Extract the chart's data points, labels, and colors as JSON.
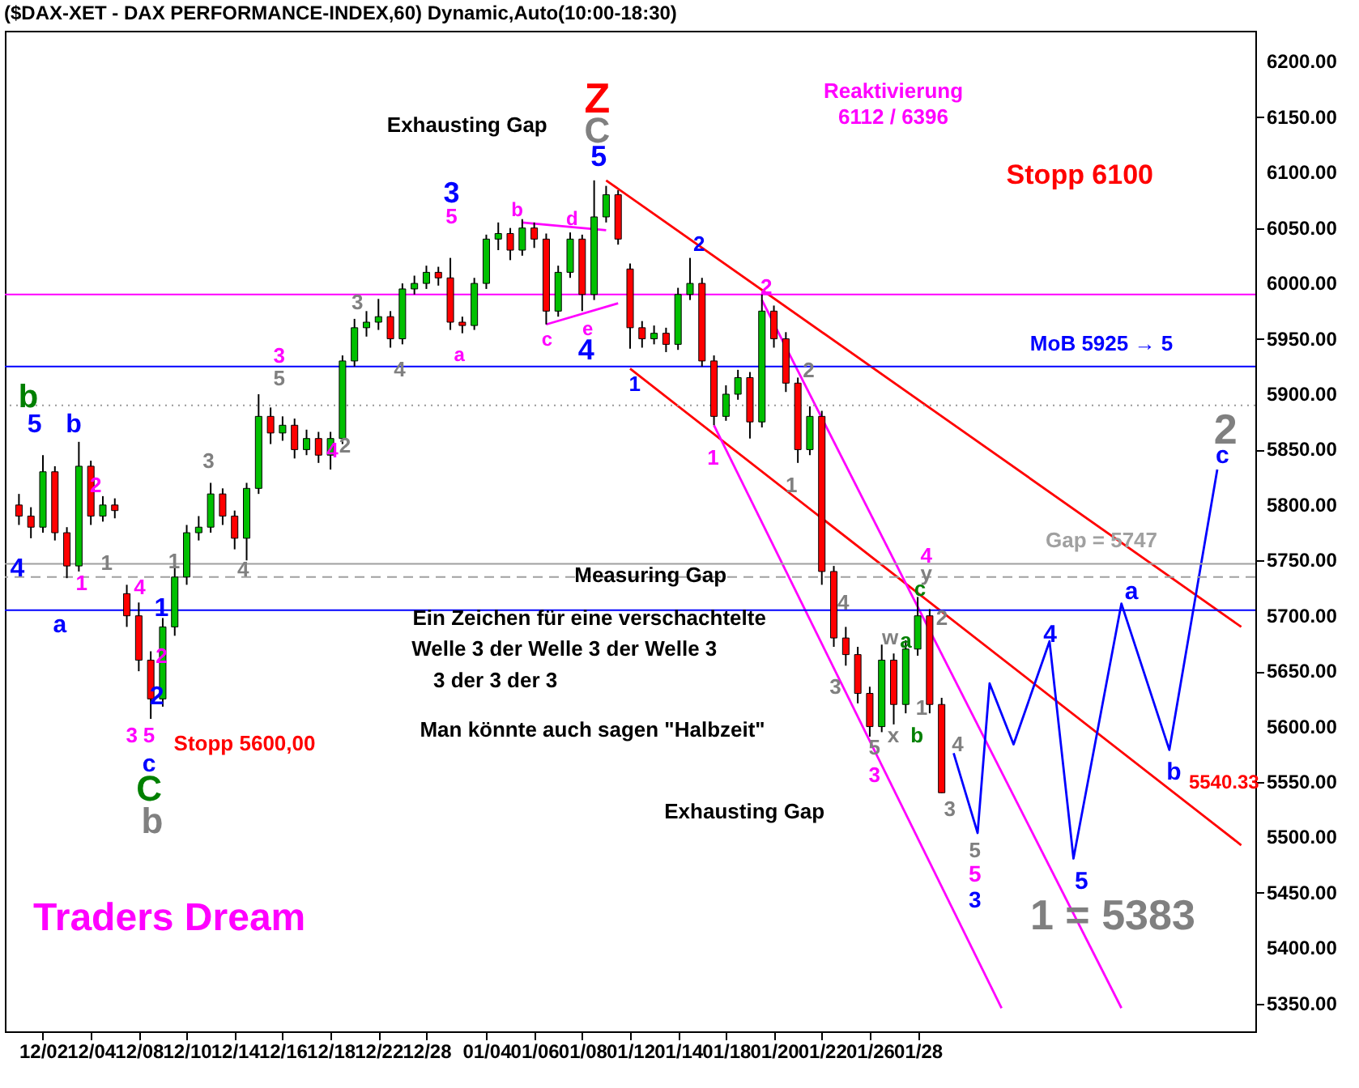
{
  "chart_data": {
    "type": "candlestick",
    "title": "($DAX-XET - DAX PERFORMANCE-INDEX,60) Dynamic,Auto(10:00-18:30)",
    "categories": [
      null,
      null,
      "12/02",
      null,
      null,
      null,
      "12/04",
      null,
      null,
      null,
      "12/08",
      null,
      null,
      null,
      "12/10",
      null,
      null,
      null,
      "12/14",
      null,
      null,
      null,
      "12/16",
      null,
      null,
      null,
      "12/18",
      null,
      null,
      null,
      "12/22",
      null,
      null,
      null,
      "12/28",
      null,
      null,
      null,
      null,
      "01/04",
      null,
      null,
      null,
      "01/06",
      null,
      null,
      null,
      "01/08",
      null,
      null,
      null,
      "01/12",
      null,
      null,
      null,
      "01/14",
      null,
      null,
      null,
      "01/18",
      null,
      null,
      null,
      "01/20",
      null,
      null,
      null,
      "01/22",
      null,
      null,
      null,
      "01/26",
      null,
      null,
      null,
      "01/28",
      null,
      null,
      null,
      null,
      null,
      null,
      null,
      null,
      null,
      null,
      null,
      null,
      null,
      null,
      null,
      null,
      null,
      null,
      null,
      null,
      null,
      null,
      null,
      null,
      null,
      null,
      null
    ],
    "ohlc": [
      [
        5800,
        5810,
        5782,
        5790
      ],
      [
        5790,
        5798,
        5770,
        5780
      ],
      [
        5780,
        5845,
        5775,
        5830
      ],
      [
        5830,
        5835,
        5768,
        5775
      ],
      [
        5775,
        5780,
        5734,
        5745
      ],
      [
        5745,
        5857,
        5740,
        5835
      ],
      [
        5835,
        5840,
        5782,
        5790
      ],
      [
        5790,
        5808,
        5785,
        5800
      ],
      [
        5800,
        5806,
        5788,
        5795
      ],
      [
        5720,
        5728,
        5690,
        5700
      ],
      [
        5700,
        5712,
        5650,
        5660
      ],
      [
        5660,
        5668,
        5607,
        5625
      ],
      [
        5625,
        5698,
        5618,
        5690
      ],
      [
        5690,
        5745,
        5682,
        5735
      ],
      [
        5735,
        5782,
        5728,
        5775
      ],
      [
        5775,
        5790,
        5768,
        5780
      ],
      [
        5780,
        5820,
        5775,
        5810
      ],
      [
        5810,
        5815,
        5782,
        5790
      ],
      [
        5790,
        5795,
        5760,
        5770
      ],
      [
        5770,
        5820,
        5750,
        5815
      ],
      [
        5815,
        5900,
        5810,
        5880
      ],
      [
        5880,
        5888,
        5855,
        5865
      ],
      [
        5865,
        5880,
        5858,
        5872
      ],
      [
        5872,
        5878,
        5842,
        5850
      ],
      [
        5850,
        5868,
        5845,
        5860
      ],
      [
        5860,
        5866,
        5838,
        5845
      ],
      [
        5845,
        5866,
        5832,
        5860
      ],
      [
        5860,
        5935,
        5855,
        5930
      ],
      [
        5930,
        5968,
        5925,
        5960
      ],
      [
        5960,
        5975,
        5952,
        5965
      ],
      [
        5965,
        5986,
        5958,
        5970
      ],
      [
        5970,
        5975,
        5942,
        5950
      ],
      [
        5950,
        6000,
        5945,
        5995
      ],
      [
        5995,
        6007,
        5990,
        6000
      ],
      [
        6000,
        6016,
        5995,
        6010
      ],
      [
        6010,
        6015,
        5998,
        6005
      ],
      [
        6005,
        6023,
        5958,
        5965
      ],
      [
        5965,
        5970,
        5955,
        5962
      ],
      [
        5962,
        6005,
        5958,
        6000
      ],
      [
        6000,
        6044,
        5995,
        6040
      ],
      [
        6040,
        6055,
        6030,
        6045
      ],
      [
        6045,
        6050,
        6021,
        6030
      ],
      [
        6030,
        6058,
        6025,
        6050
      ],
      [
        6050,
        6055,
        6032,
        6040
      ],
      [
        6040,
        6045,
        5963,
        5975
      ],
      [
        5975,
        6016,
        5970,
        6010
      ],
      [
        6010,
        6046,
        6005,
        6040
      ],
      [
        6040,
        6044,
        5975,
        5990
      ],
      [
        5990,
        6093,
        5985,
        6060
      ],
      [
        6060,
        6088,
        6055,
        6080
      ],
      [
        6080,
        6084,
        6035,
        6040
      ],
      [
        6013,
        6018,
        5941,
        5960
      ],
      [
        5960,
        5966,
        5942,
        5950
      ],
      [
        5950,
        5962,
        5945,
        5955
      ],
      [
        5955,
        5960,
        5938,
        5945
      ],
      [
        5945,
        5996,
        5940,
        5990
      ],
      [
        5990,
        6023,
        5985,
        6000
      ],
      [
        6000,
        6005,
        5925,
        5930
      ],
      [
        5930,
        5935,
        5872,
        5880
      ],
      [
        5880,
        5908,
        5876,
        5900
      ],
      [
        5900,
        5922,
        5895,
        5915
      ],
      [
        5915,
        5920,
        5860,
        5875
      ],
      [
        5875,
        5990,
        5870,
        5975
      ],
      [
        5975,
        5980,
        5942,
        5950
      ],
      [
        5950,
        5956,
        5902,
        5910
      ],
      [
        5910,
        5915,
        5838,
        5850
      ],
      [
        5850,
        5889,
        5845,
        5880
      ],
      [
        5880,
        5885,
        5728,
        5740
      ],
      [
        5740,
        5745,
        5672,
        5680
      ],
      [
        5680,
        5690,
        5655,
        5665
      ],
      [
        5665,
        5672,
        5621,
        5630
      ],
      [
        5630,
        5636,
        5591,
        5600
      ],
      [
        5600,
        5674,
        5595,
        5660
      ],
      [
        5660,
        5666,
        5602,
        5620
      ],
      [
        5620,
        5678,
        5612,
        5670
      ],
      [
        5670,
        5717,
        5664,
        5700
      ],
      [
        5700,
        5706,
        5612,
        5620
      ],
      [
        5620,
        5626,
        5540,
        5540.33
      ],
      null,
      null,
      null,
      null,
      null,
      null,
      null,
      null,
      null,
      null,
      null,
      null,
      null,
      null,
      null,
      null,
      null,
      null,
      null,
      null,
      null,
      null,
      null,
      null,
      null
    ],
    "series": [
      {
        "type": "line",
        "color": "#ff0000",
        "values": [
          null,
          null,
          null,
          null,
          null,
          null,
          null,
          null,
          null,
          null,
          null,
          null,
          null,
          null,
          null,
          null,
          null,
          null,
          null,
          null,
          null,
          null,
          null,
          null,
          null,
          null,
          null,
          null,
          null,
          null,
          null,
          null,
          null,
          null,
          null,
          null,
          null,
          null,
          null,
          null,
          null,
          null,
          null,
          null,
          null,
          null,
          null,
          null,
          null,
          6093,
          null,
          null,
          null,
          null,
          null,
          null,
          null,
          null,
          null,
          null,
          null,
          null,
          null,
          null,
          null,
          null,
          null,
          null,
          null,
          null,
          null,
          null,
          null,
          null,
          null,
          null,
          null,
          null,
          null,
          null,
          null,
          null,
          null,
          null,
          null,
          null,
          null,
          null,
          null,
          null,
          null,
          null,
          null,
          null,
          null,
          null,
          null,
          null,
          null,
          null,
          null,
          null,
          5690
        ]
      },
      {
        "type": "line",
        "color": "#ff0000",
        "values": [
          null,
          null,
          null,
          null,
          null,
          null,
          null,
          null,
          null,
          null,
          null,
          null,
          null,
          null,
          null,
          null,
          null,
          null,
          null,
          null,
          null,
          null,
          null,
          null,
          null,
          null,
          null,
          null,
          null,
          null,
          null,
          null,
          null,
          null,
          null,
          null,
          null,
          null,
          null,
          null,
          null,
          null,
          null,
          null,
          null,
          null,
          null,
          null,
          null,
          null,
          null,
          5923,
          null,
          null,
          null,
          null,
          null,
          null,
          null,
          null,
          null,
          null,
          null,
          null,
          null,
          null,
          null,
          null,
          null,
          null,
          null,
          null,
          null,
          null,
          null,
          null,
          null,
          null,
          null,
          null,
          null,
          null,
          null,
          null,
          null,
          null,
          null,
          null,
          null,
          null,
          null,
          null,
          null,
          null,
          null,
          null,
          null,
          null,
          null,
          null,
          null,
          null,
          5493
        ]
      },
      {
        "type": "line",
        "color": "#ff00ff",
        "values": [
          null,
          null,
          null,
          null,
          null,
          null,
          null,
          null,
          null,
          null,
          null,
          null,
          null,
          null,
          null,
          null,
          null,
          null,
          null,
          null,
          null,
          null,
          null,
          null,
          null,
          null,
          null,
          null,
          null,
          null,
          null,
          null,
          null,
          null,
          null,
          null,
          null,
          null,
          null,
          null,
          null,
          null,
          null,
          null,
          null,
          null,
          null,
          null,
          null,
          null,
          null,
          null,
          null,
          null,
          null,
          null,
          null,
          null,
          5872,
          null,
          null,
          null,
          null,
          null,
          null,
          null,
          null,
          null,
          null,
          null,
          null,
          null,
          null,
          null,
          null,
          null,
          null,
          null,
          null,
          null,
          null,
          null,
          5346,
          null,
          null,
          null,
          null,
          null,
          null,
          null,
          null,
          null,
          null,
          null,
          null,
          null,
          null,
          null,
          null,
          null,
          null,
          null,
          null
        ]
      },
      {
        "type": "line",
        "color": "#ff00ff",
        "values": [
          null,
          null,
          null,
          null,
          null,
          null,
          null,
          null,
          null,
          null,
          null,
          null,
          null,
          null,
          null,
          null,
          null,
          null,
          null,
          null,
          null,
          null,
          null,
          null,
          null,
          null,
          null,
          null,
          null,
          null,
          null,
          null,
          null,
          null,
          null,
          null,
          null,
          null,
          null,
          null,
          null,
          null,
          null,
          null,
          null,
          null,
          null,
          null,
          null,
          null,
          null,
          null,
          null,
          null,
          null,
          null,
          null,
          null,
          null,
          null,
          null,
          null,
          5985,
          null,
          null,
          null,
          null,
          null,
          null,
          null,
          null,
          null,
          null,
          null,
          null,
          null,
          null,
          null,
          null,
          null,
          null,
          null,
          null,
          null,
          null,
          null,
          null,
          null,
          null,
          null,
          null,
          null,
          5346,
          null,
          null,
          null,
          null,
          null,
          null,
          null,
          null,
          null,
          null
        ]
      },
      {
        "type": "line",
        "color": "#ff00ff",
        "values": [
          null,
          null,
          null,
          null,
          null,
          null,
          null,
          null,
          null,
          null,
          null,
          null,
          null,
          null,
          null,
          null,
          null,
          null,
          null,
          null,
          null,
          null,
          null,
          null,
          null,
          null,
          null,
          null,
          null,
          null,
          null,
          null,
          null,
          null,
          null,
          null,
          null,
          null,
          null,
          null,
          null,
          null,
          6055,
          null,
          null,
          null,
          null,
          null,
          null,
          6048,
          null,
          null,
          null,
          null,
          null,
          null,
          null,
          null,
          null,
          null,
          null,
          null,
          null,
          null,
          null,
          null,
          null,
          null,
          null,
          null,
          null,
          null,
          null,
          null,
          null,
          null,
          null,
          null,
          null,
          null,
          null,
          null,
          null,
          null,
          null,
          null,
          null,
          null,
          null,
          null,
          null,
          null,
          null,
          null,
          null,
          null,
          null,
          null,
          null,
          null,
          null,
          null,
          null
        ]
      },
      {
        "type": "line",
        "color": "#ff00ff",
        "values": [
          null,
          null,
          null,
          null,
          null,
          null,
          null,
          null,
          null,
          null,
          null,
          null,
          null,
          null,
          null,
          null,
          null,
          null,
          null,
          null,
          null,
          null,
          null,
          null,
          null,
          null,
          null,
          null,
          null,
          null,
          null,
          null,
          null,
          null,
          null,
          null,
          null,
          null,
          null,
          null,
          null,
          null,
          null,
          null,
          5963,
          null,
          null,
          null,
          null,
          null,
          5982,
          null,
          null,
          null,
          null,
          null,
          null,
          null,
          null,
          null,
          null,
          null,
          null,
          null,
          null,
          null,
          null,
          null,
          null,
          null,
          null,
          null,
          null,
          null,
          null,
          null,
          null,
          null,
          null,
          null,
          null,
          null,
          null,
          null,
          null,
          null,
          null,
          null,
          null,
          null,
          null,
          null,
          null,
          null,
          null,
          null,
          null,
          null,
          null,
          null,
          null,
          null,
          null
        ]
      },
      {
        "type": "line",
        "color": "#0000ff",
        "values": [
          null,
          null,
          null,
          null,
          null,
          null,
          null,
          null,
          null,
          null,
          null,
          null,
          null,
          null,
          null,
          null,
          null,
          null,
          null,
          null,
          null,
          null,
          null,
          null,
          null,
          null,
          null,
          null,
          null,
          null,
          null,
          null,
          null,
          null,
          null,
          null,
          null,
          null,
          null,
          null,
          null,
          null,
          null,
          null,
          null,
          null,
          null,
          null,
          null,
          null,
          null,
          null,
          null,
          null,
          null,
          null,
          null,
          null,
          null,
          null,
          null,
          null,
          null,
          null,
          null,
          null,
          null,
          null,
          null,
          null,
          null,
          null,
          null,
          null,
          null,
          null,
          null,
          null,
          5576,
          null,
          5504,
          5639,
          null,
          5584,
          null,
          null,
          5677,
          null,
          5481,
          null,
          null,
          null,
          5711,
          null,
          null,
          null,
          5579,
          null,
          null,
          null,
          5832,
          null,
          null
        ]
      }
    ],
    "ref_lines": [
      {
        "axis": "y",
        "value": 5990,
        "color": "#ff00ff"
      },
      {
        "axis": "y",
        "value": 5925,
        "color": "#0000ff",
        "label": "MoB 5925 → 5"
      },
      {
        "axis": "y",
        "value": 5890,
        "color": "#999999",
        "line_style": "dotted"
      },
      {
        "axis": "y",
        "value": 5747,
        "color": "#a0a0a0",
        "label": "Gap = 5747"
      },
      {
        "axis": "y",
        "value": 5735,
        "color": "#a0a0a0",
        "line_style": "dashed"
      },
      {
        "axis": "y",
        "value": 5705,
        "color": "#0000ff"
      }
    ],
    "ylim": [
      5325,
      6228
    ],
    "yticks": [
      {
        "value": 5350,
        "label": "5350.00"
      },
      {
        "value": 5400,
        "label": "5400.00"
      },
      {
        "value": 5450,
        "label": "5450.00"
      },
      {
        "value": 5500,
        "label": "5500.00"
      },
      {
        "value": 5550,
        "label": "5550.00"
      },
      {
        "value": 5600,
        "label": "5600.00"
      },
      {
        "value": 5650,
        "label": "5650.00"
      },
      {
        "value": 5700,
        "label": "5700.00"
      },
      {
        "value": 5750,
        "label": "5750.00"
      },
      {
        "value": 5800,
        "label": "5800.00"
      },
      {
        "value": 5850,
        "label": "5850.00"
      },
      {
        "value": 5900,
        "label": "5900.00"
      },
      {
        "value": 5950,
        "label": "5950.00"
      },
      {
        "value": 6000,
        "label": "6000.00"
      },
      {
        "value": 6050,
        "label": "6050.00"
      },
      {
        "value": 6100,
        "label": "6100.00"
      },
      {
        "value": 6150,
        "label": "6150.00"
      },
      {
        "value": 6200,
        "label": "6200.00"
      }
    ],
    "annotations": [
      "Ein Zeichen für eine verschachtelte",
      "Welle 3 der Welle 3 der Welle 3",
      "3 der 3 der 3",
      "Man könnte auch sagen \"Halbzeit\"",
      "5540.33",
      "Exhausting Gap",
      "Measuring Gap",
      "Exhausting Gap",
      "Stopp 5600,00",
      "Stopp 6100",
      "Reaktivierung",
      "6112 / 6396",
      "1 = 5383",
      "Traders Dream",
      "b",
      "5",
      "b",
      "4",
      "a",
      "2",
      "1",
      "1",
      "4",
      "1",
      "2",
      "2",
      "3",
      "5",
      "c",
      "C",
      "b",
      "3",
      "1",
      "4",
      "3",
      "5",
      "4",
      "2",
      "3",
      "4",
      "3",
      "5",
      "a",
      "b",
      "d",
      "c",
      "e",
      "4",
      "Z",
      "C",
      "5",
      "1",
      "2",
      "2",
      "1",
      "2",
      "1",
      "4",
      "y",
      "c",
      "4",
      "3",
      "w",
      "a",
      "x",
      "b",
      "5",
      "3",
      "1",
      "2",
      "3",
      "4",
      "5",
      "5",
      "3",
      "4",
      "5",
      "a",
      "b",
      "c",
      "2"
    ]
  }
}
